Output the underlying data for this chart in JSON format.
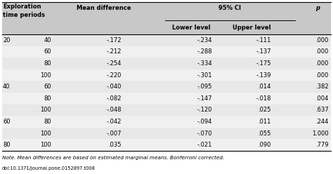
{
  "rows": [
    [
      "20",
      "40",
      "-.172",
      "-.234",
      "-.111",
      ".000"
    ],
    [
      "",
      "60",
      "-.212",
      "-.288",
      "-.137",
      ".000"
    ],
    [
      "",
      "80",
      "-.254",
      "-.334",
      "-.175",
      ".000"
    ],
    [
      "",
      "100",
      "-.220",
      "-.301",
      "-.139",
      ".000"
    ],
    [
      "40",
      "60",
      "-.040",
      "-.095",
      ".014",
      ".382"
    ],
    [
      "",
      "80",
      "-.082",
      "-.147",
      "-.018",
      ".004"
    ],
    [
      "",
      "100",
      "-.048",
      "-.120",
      ".025",
      ".637"
    ],
    [
      "60",
      "80",
      "-.042",
      "-.094",
      ".011",
      ".244"
    ],
    [
      "",
      "100",
      "-.007",
      "-.070",
      ".055",
      "1.000"
    ],
    [
      "80",
      "100",
      ".035",
      "-.021",
      ".090",
      ".779"
    ]
  ],
  "note": "Note. Mean differences are based on estimated marginal means. Bonferroni corrected.",
  "doi": "doi:10.1371/journal.pone.0152897.t008",
  "bg_gray": "#e8e8e8",
  "bg_white": "#f0f0f0",
  "header_bg": "#c8c8c8"
}
